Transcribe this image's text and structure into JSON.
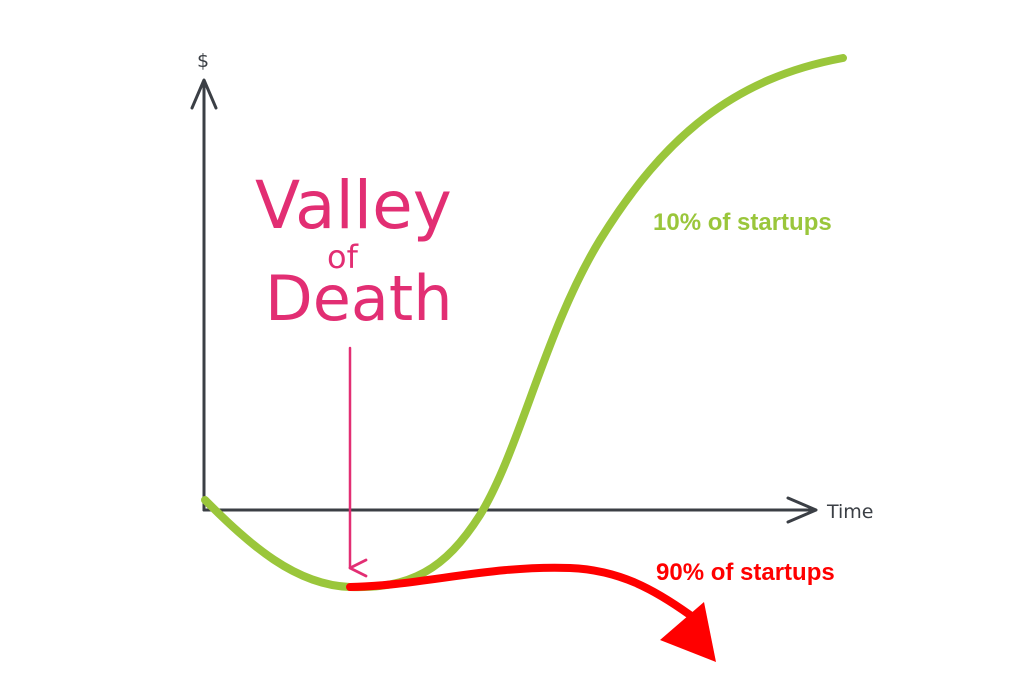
{
  "diagram": {
    "y_axis_label": "$",
    "x_axis_label": "Time",
    "title_line1": "Valley",
    "title_line2": "of",
    "title_line3": "Death",
    "success_label": "10% of startups",
    "failure_label": "90% of startups",
    "colors": {
      "axis": "#3b3f45",
      "success_curve": "#9ac63b",
      "failure_curve": "#ff0000",
      "title": "#e22e73"
    }
  }
}
